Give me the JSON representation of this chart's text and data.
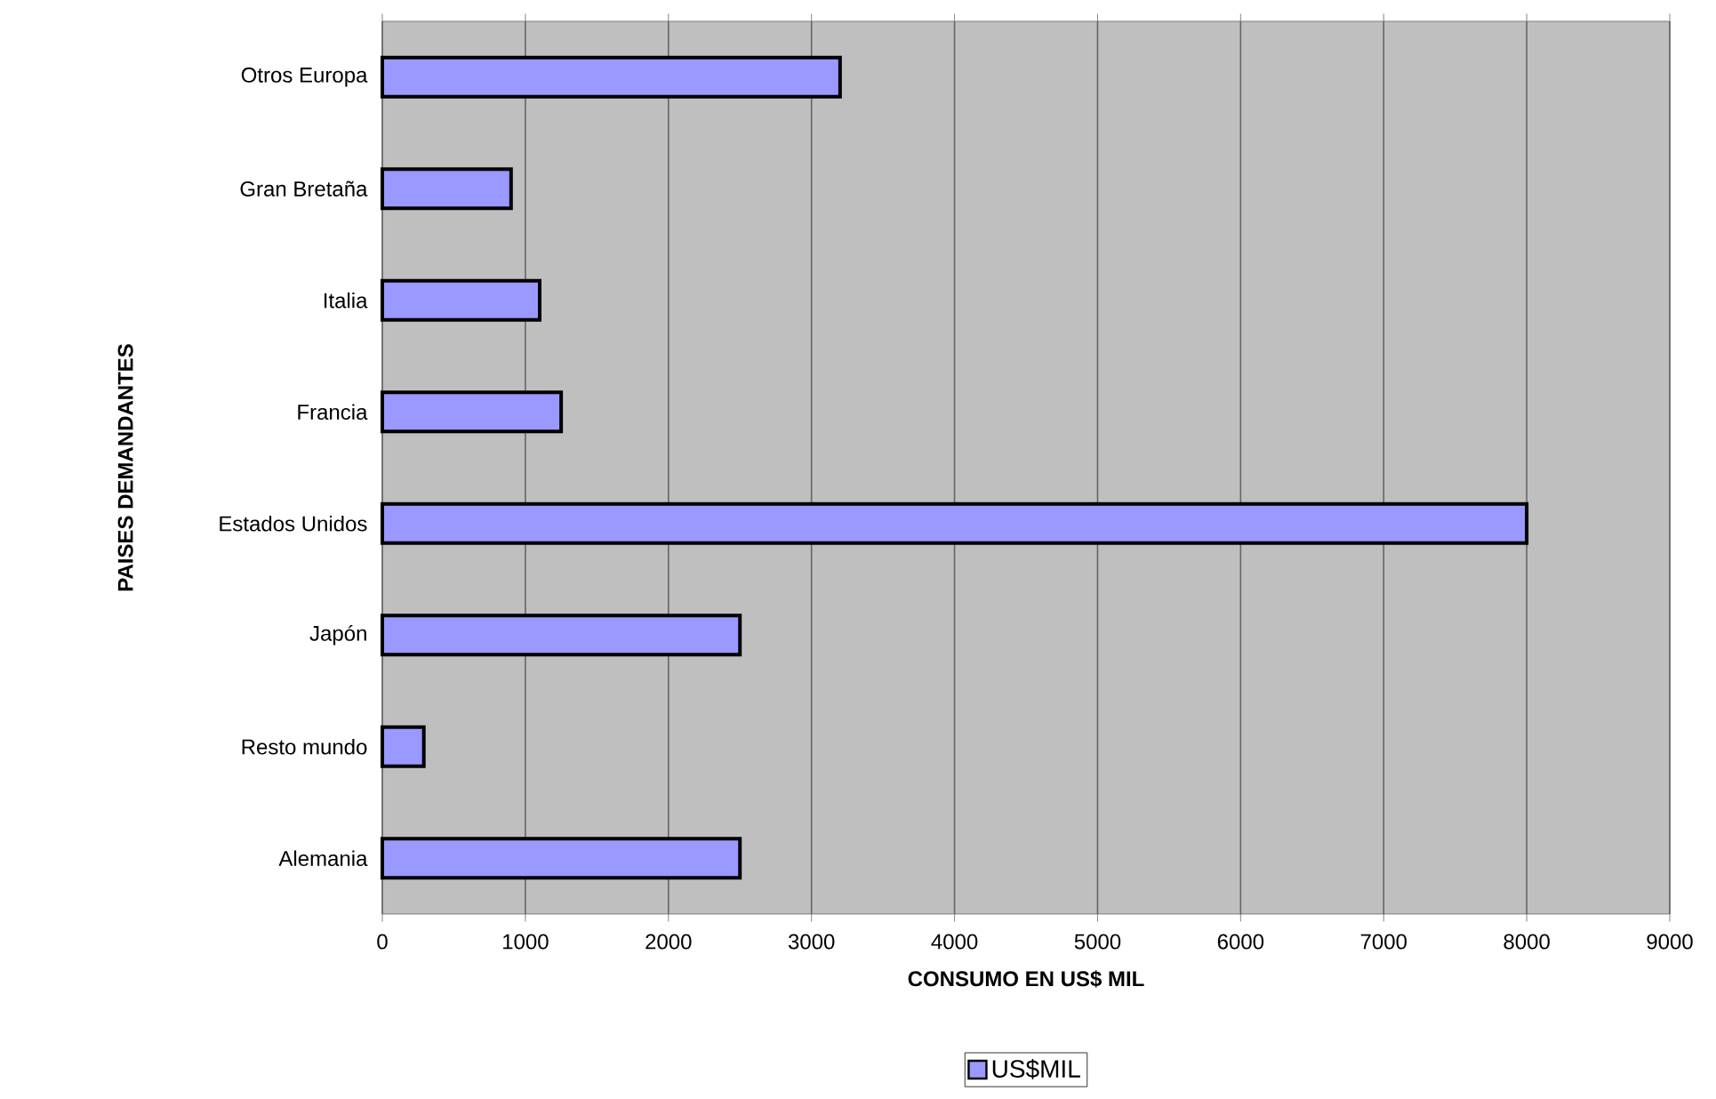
{
  "chart_data": {
    "type": "bar",
    "orientation": "horizontal",
    "categories": [
      "Otros Europa",
      "Gran Bretaña",
      "Italia",
      "Francia",
      "Estados Unidos",
      "Japón",
      "Resto mundo",
      "Alemania"
    ],
    "series": [
      {
        "name": "US$MIL",
        "color": "#9999ff",
        "values": [
          3200,
          900,
          1100,
          1250,
          8000,
          2500,
          290,
          2500
        ]
      }
    ],
    "xlabel": "CONSUMO EN US$ MIL",
    "ylabel": "PAISES DEMANDANTES",
    "xlim": [
      0,
      9000
    ],
    "xticks": [
      0,
      1000,
      2000,
      3000,
      4000,
      5000,
      6000,
      7000,
      8000,
      9000
    ],
    "grid": "x",
    "legend": "bottom"
  }
}
